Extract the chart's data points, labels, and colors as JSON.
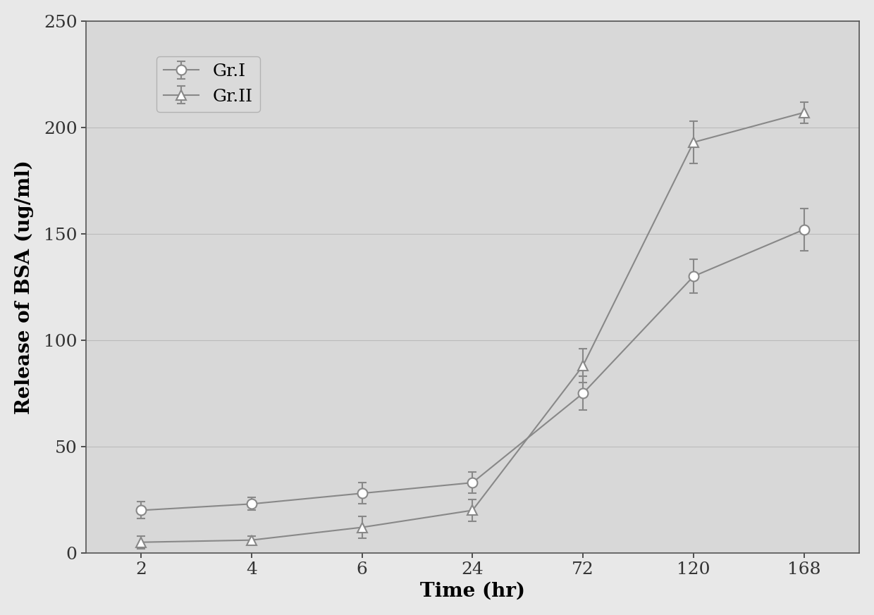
{
  "x_positions": [
    1,
    2,
    3,
    4,
    5,
    6,
    7
  ],
  "x_labels": [
    "2",
    "4",
    "6",
    "24",
    "72",
    "120",
    "168"
  ],
  "gr1_y": [
    20,
    23,
    28,
    33,
    75,
    130,
    152
  ],
  "gr1_yerr": [
    4,
    3,
    5,
    5,
    8,
    8,
    10
  ],
  "gr2_y": [
    5,
    6,
    12,
    20,
    88,
    193,
    207
  ],
  "gr2_yerr": [
    3,
    2,
    5,
    5,
    8,
    10,
    5
  ],
  "ylabel": "Release of BSA (ug/ml)",
  "xlabel": "Time (hr)",
  "legend_gr1": "Gr.I",
  "legend_gr2": "Gr.II",
  "ylim": [
    0,
    250
  ],
  "yticks": [
    0,
    50,
    100,
    150,
    200,
    250
  ],
  "line_color": "#888888",
  "bg_color": "#e8e8e8",
  "plot_bg_color": "#d8d8d8"
}
